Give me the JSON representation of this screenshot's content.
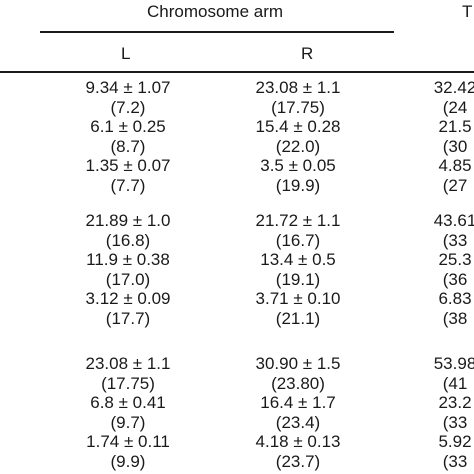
{
  "header": {
    "group_label": "Chromosome arm",
    "cut_label": "T",
    "col_l": "L",
    "col_r": "R"
  },
  "groups": [
    {
      "rows": [
        {
          "l": "9.34 ± 1.07",
          "r": "23.08 ± 1.1",
          "t": "32.42"
        },
        {
          "l": "(7.2)",
          "r": "(17.75)",
          "t": "(24"
        },
        {
          "l": "6.1 ± 0.25",
          "r": "15.4 ± 0.28",
          "t": "21.5"
        },
        {
          "l": "(8.7)",
          "r": "(22.0)",
          "t": "(30"
        },
        {
          "l": "1.35 ± 0.07",
          "r": "3.5 ± 0.05",
          "t": "4.85"
        },
        {
          "l": "(7.7)",
          "r": "(19.9)",
          "t": "(27"
        }
      ]
    },
    {
      "rows": [
        {
          "l": "21.89 ± 1.0",
          "r": "21.72 ± 1.1",
          "t": "43.61"
        },
        {
          "l": "(16.8)",
          "r": "(16.7)",
          "t": "(33"
        },
        {
          "l": "11.9 ± 0.38",
          "r": "13.4 ± 0.5",
          "t": "25.3"
        },
        {
          "l": "(17.0)",
          "r": "(19.1)",
          "t": "(36"
        },
        {
          "l": "3.12 ± 0.09",
          "r": "3.71 ± 0.10",
          "t": "6.83"
        },
        {
          "l": "(17.7)",
          "r": "(21.1)",
          "t": "(38"
        }
      ]
    },
    {
      "rows": [
        {
          "l": "23.08 ± 1.1",
          "r": "30.90 ± 1.5",
          "t": "53.98"
        },
        {
          "l": "(17.75)",
          "r": "(23.80)",
          "t": "(41"
        },
        {
          "l": "6.8 ± 0.41",
          "r": "16.4 ± 1.7",
          "t": "23.2"
        },
        {
          "l": "(9.7)",
          "r": "(23.4)",
          "t": "(33"
        },
        {
          "l": "1.74 ± 0.11",
          "r": "4.18 ± 0.13",
          "t": "5.92"
        },
        {
          "l": "(9.9)",
          "r": "(23.7)",
          "t": "(33"
        }
      ]
    }
  ]
}
